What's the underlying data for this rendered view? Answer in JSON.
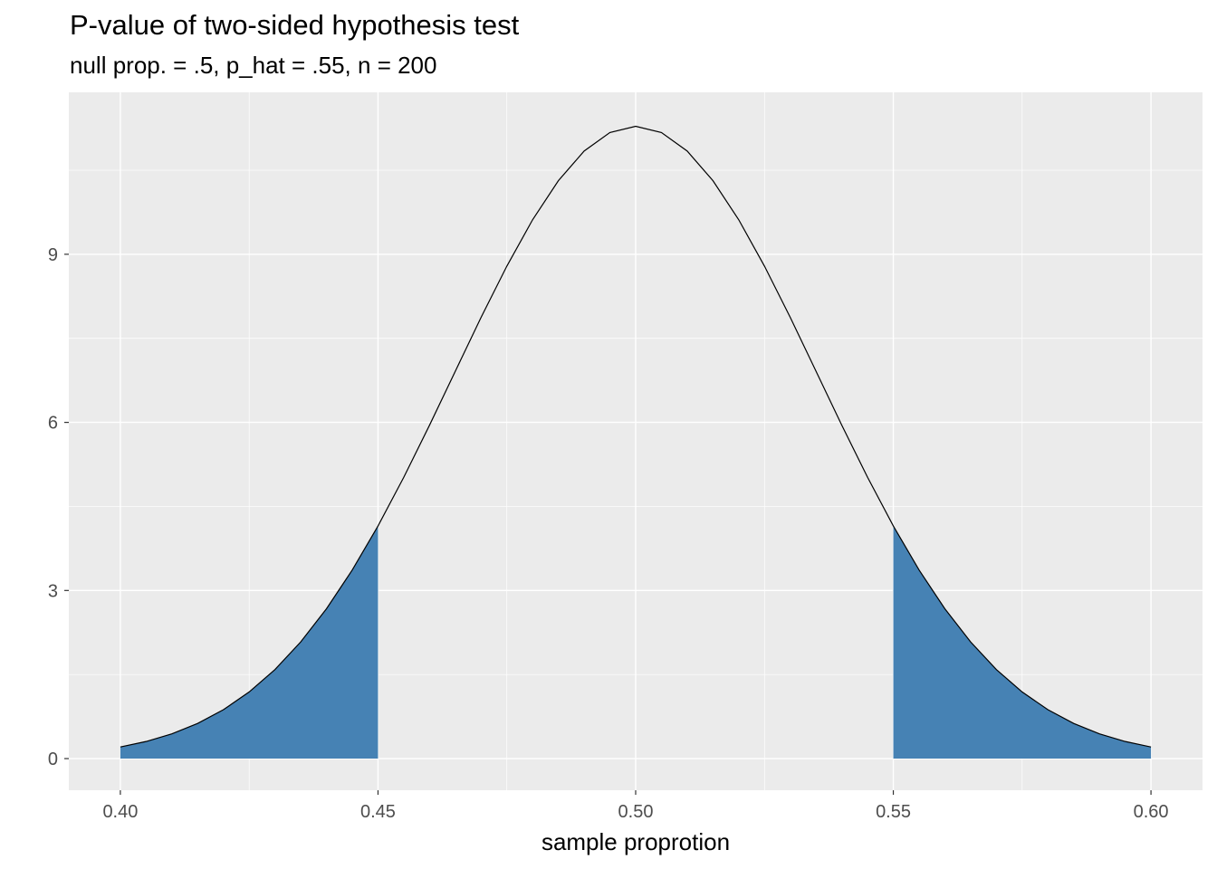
{
  "chart_data": {
    "type": "area",
    "title": "P-value of two-sided hypothesis test",
    "subtitle": "null prop. = .5, p_hat = .55, n = 200",
    "xlabel": "sample proprotion",
    "ylabel": "",
    "xlim": [
      0.39,
      0.61
    ],
    "ylim": [
      -0.565,
      11.89
    ],
    "x_ticks": [
      0.4,
      0.45,
      0.5,
      0.55,
      0.6
    ],
    "x_tick_labels": [
      "0.40",
      "0.45",
      "0.50",
      "0.55",
      "0.60"
    ],
    "y_ticks": [
      0,
      3,
      6,
      9
    ],
    "y_tick_labels": [
      "0",
      "3",
      "6",
      "9"
    ],
    "grid": true,
    "distribution": {
      "name": "normal",
      "mean": 0.5,
      "sd": 0.03536
    },
    "x": [
      0.4,
      0.405,
      0.41,
      0.415,
      0.42,
      0.425,
      0.43,
      0.435,
      0.44,
      0.445,
      0.45,
      0.455,
      0.46,
      0.465,
      0.47,
      0.475,
      0.48,
      0.485,
      0.49,
      0.495,
      0.5,
      0.505,
      0.51,
      0.515,
      0.52,
      0.525,
      0.53,
      0.535,
      0.54,
      0.545,
      0.55,
      0.555,
      0.56,
      0.565,
      0.57,
      0.575,
      0.58,
      0.585,
      0.59,
      0.595,
      0.6
    ],
    "y": [
      0.207,
      0.305,
      0.442,
      0.627,
      0.872,
      1.189,
      1.589,
      2.082,
      2.674,
      3.365,
      4.151,
      5.02,
      5.95,
      6.913,
      7.873,
      8.788,
      9.616,
      10.313,
      10.842,
      11.172,
      11.284,
      11.172,
      10.842,
      10.313,
      9.616,
      8.788,
      7.873,
      6.913,
      5.95,
      5.02,
      4.151,
      3.365,
      2.674,
      2.082,
      1.589,
      1.189,
      0.872,
      0.627,
      0.442,
      0.305,
      0.207
    ],
    "shaded_regions": [
      [
        0.4,
        0.45
      ],
      [
        0.55,
        0.6
      ]
    ],
    "fill_color": "#4682B4",
    "line_color": "#000000",
    "panel_color": "#EBEBEB"
  }
}
